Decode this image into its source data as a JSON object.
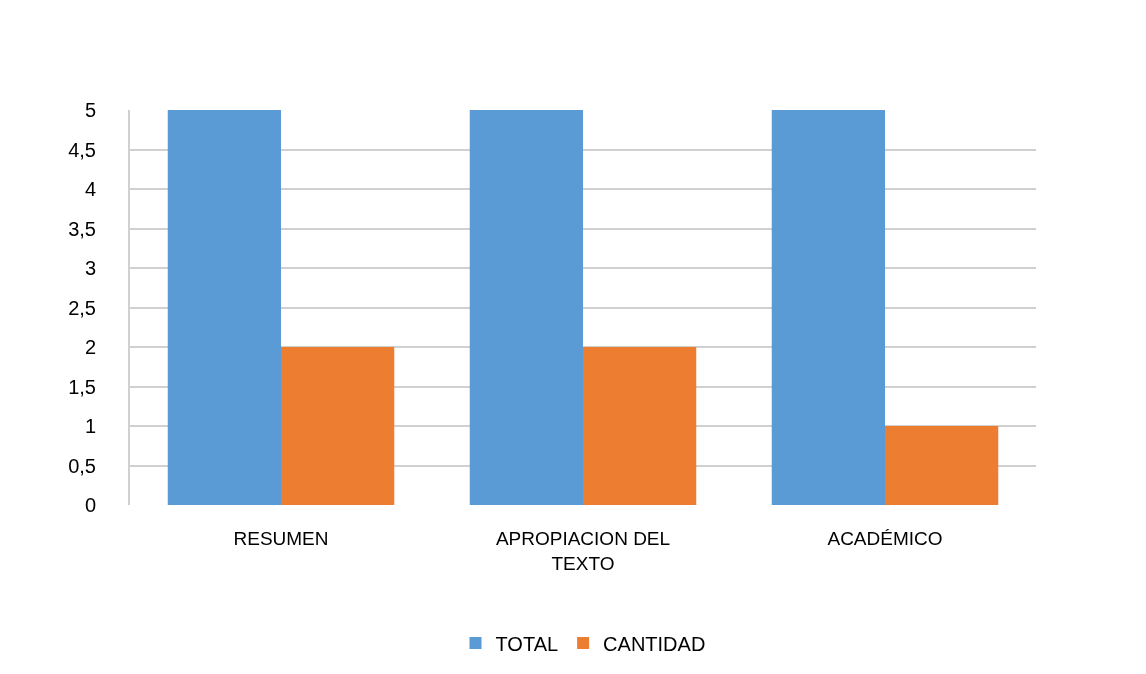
{
  "chart_data": {
    "type": "bar",
    "categories": [
      "RESUMEN",
      "APROPIACION DEL TEXTO",
      "ACADÉMICO"
    ],
    "series": [
      {
        "name": "TOTAL",
        "color": "#5b9bd5",
        "values": [
          5,
          5,
          5
        ]
      },
      {
        "name": "CANTIDAD",
        "color": "#ed7d31",
        "values": [
          2,
          2,
          1
        ]
      }
    ],
    "ylim": [
      0,
      5
    ],
    "yticks": [
      0,
      {
        "value": 0.5,
        "label": "0,5"
      },
      1,
      {
        "value": 1.5,
        "label": "1,5"
      },
      2,
      {
        "value": 2.5,
        "label": "2,5"
      },
      3,
      {
        "value": 3.5,
        "label": "3,5"
      },
      4,
      {
        "value": 4.5,
        "label": "4,5"
      },
      5
    ],
    "grid": "y",
    "legend": "bottom"
  }
}
